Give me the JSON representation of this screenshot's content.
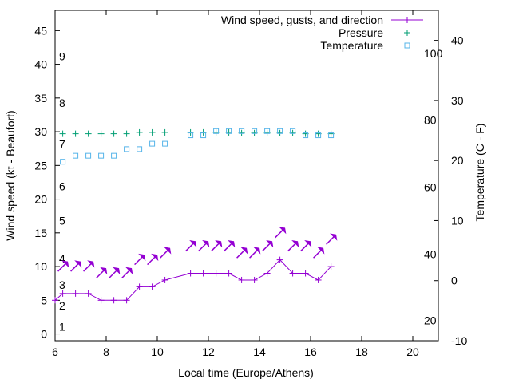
{
  "chart_data": {
    "type": "line",
    "title": "",
    "xlabel": "Local time (Europe/Athens)",
    "ylabel": "Wind speed (kt - Beaufort)",
    "y2label": "Temperature (C - F)",
    "xlim": [
      6,
      21
    ],
    "ylim": [
      -1,
      48
    ],
    "y2lim": [
      -10,
      45
    ],
    "grid": false,
    "legend": "top-right",
    "x_ticks": [
      6,
      8,
      10,
      12,
      14,
      16,
      18,
      20
    ],
    "y_ticks": [
      0,
      5,
      10,
      15,
      20,
      25,
      30,
      35,
      40,
      45
    ],
    "y2_ticks": [
      -10,
      0,
      10,
      20,
      30,
      40
    ],
    "beaufort_labels": [
      {
        "label": "1",
        "kt": 1.1
      },
      {
        "label": "2",
        "kt": 4.2
      },
      {
        "label": "3",
        "kt": 7.3
      },
      {
        "label": "4",
        "kt": 11.2
      },
      {
        "label": "5",
        "kt": 16.8
      },
      {
        "label": "6",
        "kt": 21.9
      },
      {
        "label": "7",
        "kt": 28.2
      },
      {
        "label": "8",
        "kt": 34.3
      },
      {
        "label": "9",
        "kt": 41.2
      }
    ],
    "fahrenheit_labels": [
      {
        "label": "20",
        "temp_c": -6.6
      },
      {
        "label": "40",
        "temp_c": 4.4
      },
      {
        "label": "60",
        "temp_c": 15.6
      },
      {
        "label": "80",
        "temp_c": 26.7
      },
      {
        "label": "100",
        "temp_c": 37.8
      }
    ],
    "series": [
      {
        "name": "Wind speed, gusts, and direction",
        "type": "line",
        "color": "#9400d3",
        "x": [
          6.0,
          6.3,
          6.8,
          7.3,
          7.8,
          8.3,
          8.8,
          9.3,
          9.8,
          10.3,
          11.3,
          11.8,
          12.3,
          12.8,
          13.3,
          13.8,
          14.3,
          14.8,
          15.3,
          15.8,
          16.3,
          16.8
        ],
        "values": [
          5,
          6,
          6,
          6,
          5,
          5,
          5,
          7,
          7,
          8,
          9,
          9,
          9,
          9,
          8,
          8,
          9,
          11,
          9,
          9,
          8,
          10
        ]
      },
      {
        "name": "Gusts and direction",
        "type": "arrows",
        "color": "#9400d3",
        "points": [
          {
            "x": 6.3,
            "kt": 10
          },
          {
            "x": 6.8,
            "kt": 10
          },
          {
            "x": 7.3,
            "kt": 10
          },
          {
            "x": 7.8,
            "kt": 9
          },
          {
            "x": 8.3,
            "kt": 9
          },
          {
            "x": 8.8,
            "kt": 9
          },
          {
            "x": 9.3,
            "kt": 11
          },
          {
            "x": 9.8,
            "kt": 11
          },
          {
            "x": 10.3,
            "kt": 12
          },
          {
            "x": 11.3,
            "kt": 13
          },
          {
            "x": 11.8,
            "kt": 13
          },
          {
            "x": 12.3,
            "kt": 13
          },
          {
            "x": 12.8,
            "kt": 13
          },
          {
            "x": 13.3,
            "kt": 12
          },
          {
            "x": 13.8,
            "kt": 12
          },
          {
            "x": 14.3,
            "kt": 13
          },
          {
            "x": 14.8,
            "kt": 15
          },
          {
            "x": 15.3,
            "kt": 13
          },
          {
            "x": 15.8,
            "kt": 13
          },
          {
            "x": 16.3,
            "kt": 12
          },
          {
            "x": 16.8,
            "kt": 14
          }
        ]
      },
      {
        "name": "Pressure",
        "type": "scatter",
        "marker": "plus",
        "color": "#009e73",
        "x": [
          6.3,
          6.8,
          7.3,
          7.8,
          8.3,
          8.8,
          9.3,
          9.8,
          10.3,
          11.3,
          11.8,
          12.3,
          12.8,
          13.3,
          13.8,
          14.3,
          14.8,
          15.3,
          15.8,
          16.3,
          16.8
        ],
        "values": [
          29.7,
          29.7,
          29.7,
          29.7,
          29.7,
          29.7,
          29.9,
          29.9,
          29.9,
          29.9,
          29.9,
          29.9,
          29.9,
          29.8,
          29.8,
          29.8,
          29.8,
          29.8,
          29.7,
          29.7,
          29.7
        ]
      },
      {
        "name": "Temperature",
        "type": "scatter",
        "marker": "square",
        "color": "#56b4e9",
        "axis": "y2",
        "x": [
          6.3,
          6.8,
          7.3,
          7.8,
          8.3,
          8.8,
          9.3,
          9.8,
          10.3,
          11.3,
          11.8,
          12.3,
          12.8,
          13.3,
          13.8,
          14.3,
          14.8,
          15.3,
          15.8,
          16.3,
          16.8
        ],
        "values": [
          19.8,
          20.8,
          20.8,
          20.8,
          20.8,
          21.9,
          21.9,
          22.8,
          22.8,
          24.2,
          24.2,
          24.9,
          24.9,
          24.9,
          24.9,
          24.9,
          24.9,
          24.9,
          24.2,
          24.2,
          24.2
        ]
      }
    ]
  }
}
